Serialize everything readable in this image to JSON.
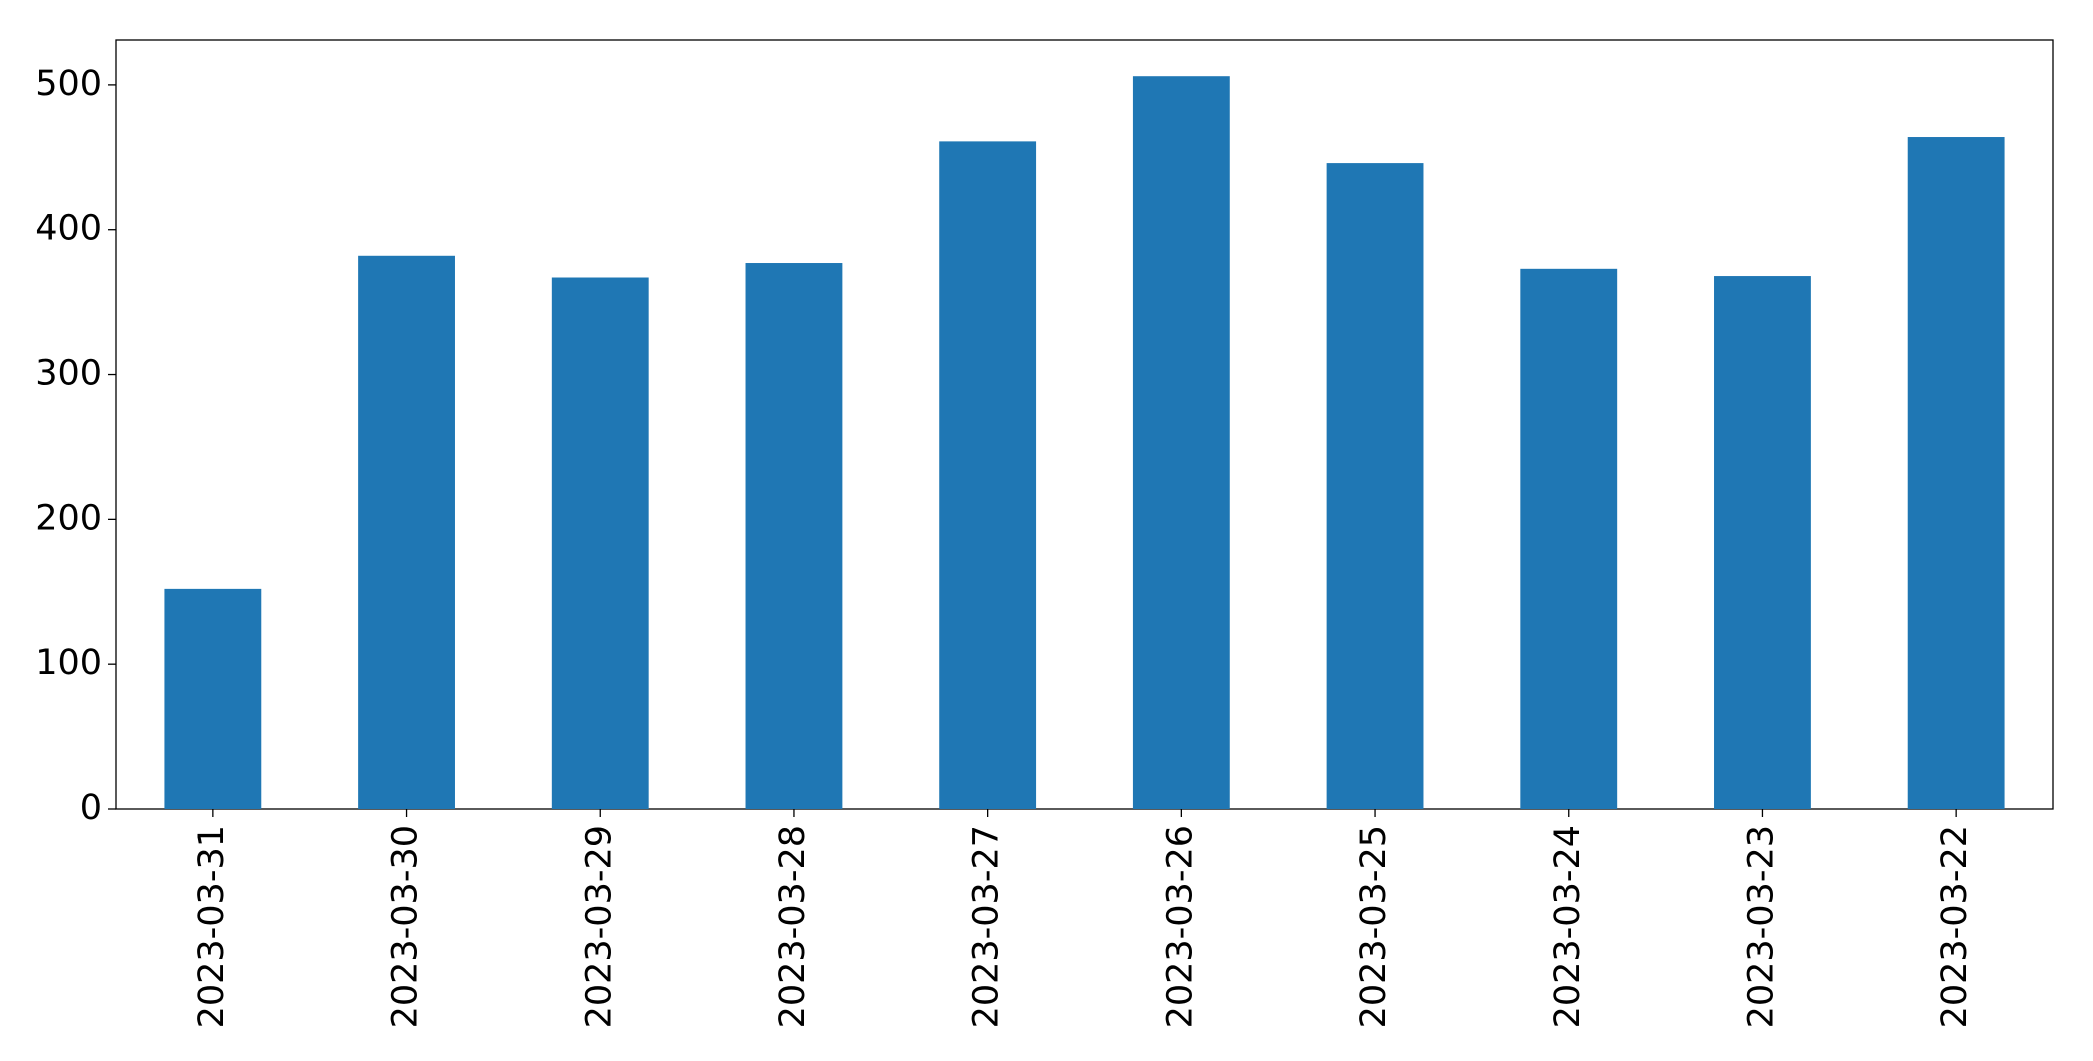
{
  "chart_data": {
    "type": "bar",
    "categories": [
      "2023-03-31",
      "2023-03-30",
      "2023-03-29",
      "2023-03-28",
      "2023-03-27",
      "2023-03-26",
      "2023-03-25",
      "2023-03-24",
      "2023-03-23",
      "2023-03-22"
    ],
    "values": [
      152,
      382,
      367,
      377,
      461,
      506,
      446,
      373,
      368,
      464
    ],
    "color": "#1f77b4",
    "ylim": [
      0,
      531
    ],
    "yticks": [
      0,
      100,
      200,
      300,
      400,
      500
    ],
    "grid": false
  }
}
